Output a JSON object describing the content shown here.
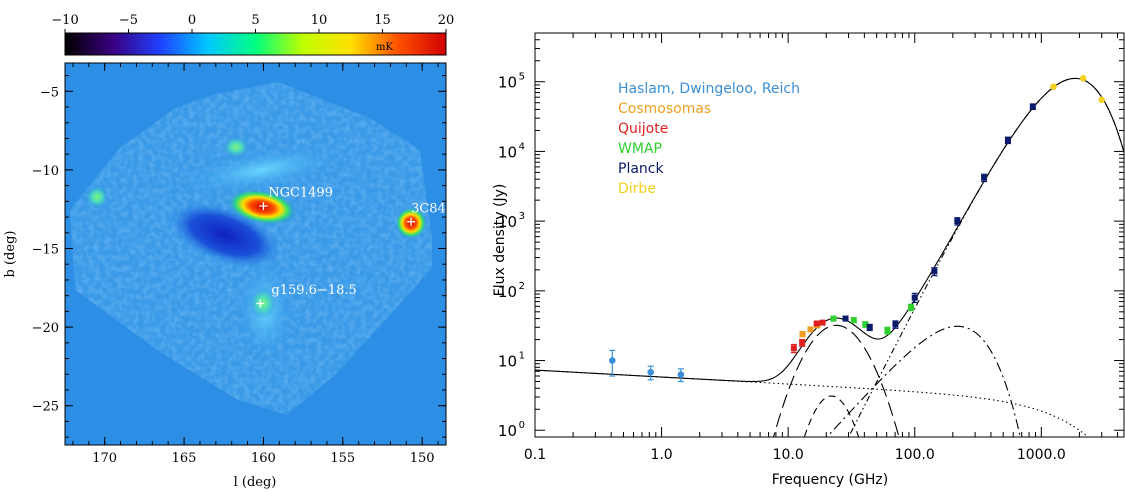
{
  "chart_data": [
    {
      "type": "heatmap",
      "colorbar": {
        "ticks": [
          -10,
          -5,
          0,
          5,
          10,
          15,
          20
        ],
        "range": [
          -10,
          20
        ],
        "unit": "mK",
        "colors": [
          "#000000",
          "#3a0080",
          "#2040ff",
          "#00c8ff",
          "#00ff80",
          "#c0ff00",
          "#ffe000",
          "#ff5000",
          "#d00000"
        ]
      },
      "xlabel": "l (deg)",
      "ylabel": "b (deg)",
      "xlim": [
        172.5,
        148.5
      ],
      "ylim": [
        -27.5,
        -3.2
      ],
      "xticks": [
        170,
        165,
        160,
        155,
        150
      ],
      "yticks": [
        -5,
        -10,
        -15,
        -20,
        -25
      ],
      "background_color": "#2d8ee6",
      "sources": [
        {
          "name": "NGC1499",
          "l": 160.0,
          "b": -12.3,
          "label_l": 159.7,
          "label_b": -11.7
        },
        {
          "name": "3C84",
          "l": 150.7,
          "b": -13.3,
          "label_l": 150.7,
          "label_b": -12.7
        },
        {
          "name": "g159.6−18.5",
          "l": 160.2,
          "b": -18.5,
          "label_l": 159.5,
          "label_b": -17.9
        }
      ]
    },
    {
      "type": "scatter",
      "xlabel": "Frequency (GHz)",
      "ylabel": "Flux density (Jy)",
      "xscale": "log",
      "yscale": "log",
      "xlim": [
        0.1,
        4500
      ],
      "ylim": [
        0.8,
        500000
      ],
      "xtick_labels": [
        "0.1",
        "1.0",
        "10.0",
        "100.0",
        "1000.0"
      ],
      "xticks": [
        0.1,
        1,
        10,
        100,
        1000
      ],
      "yticks": [
        1,
        10,
        100,
        1000,
        10000,
        100000
      ],
      "ytick_labels": [
        "10",
        "10",
        "10",
        "10",
        "10",
        "10"
      ],
      "ytick_exponents": [
        "0",
        "1",
        "2",
        "3",
        "4",
        "5"
      ],
      "legend_position": "top-left",
      "series": [
        {
          "name": "Haslam, Dwingeloo, Reich",
          "color": "#3a8fd8",
          "x": [
            0.408,
            0.82,
            1.42
          ],
          "y": [
            10.0,
            6.8,
            6.3
          ],
          "err": [
            4.0,
            1.5,
            1.3
          ]
        },
        {
          "name": "Cosmosomas",
          "color": "#f0a020",
          "x": [
            13.0,
            15.0,
            17.0
          ],
          "y": [
            24.0,
            28.0,
            32.0
          ],
          "err": [
            2.0,
            2.0,
            2.0
          ]
        },
        {
          "name": "Quijote",
          "color": "#e02020",
          "x": [
            11.1,
            12.9,
            16.8,
            18.7
          ],
          "y": [
            15.0,
            18.0,
            34.0,
            35.0
          ],
          "err": [
            2.0,
            2.0,
            2.0,
            2.0
          ]
        },
        {
          "name": "WMAP",
          "color": "#30d030",
          "x": [
            22.8,
            33.0,
            40.7,
            60.8,
            93.5
          ],
          "y": [
            40.0,
            38.0,
            33.0,
            27.0,
            58.0
          ],
          "err": [
            3.0,
            3.0,
            3.0,
            3.0,
            6.0
          ]
        },
        {
          "name": "Planck",
          "color": "#0a1a6a",
          "x": [
            28.4,
            44.1,
            70.4,
            100,
            143,
            217,
            353,
            545,
            857
          ],
          "y": [
            40.0,
            30.0,
            33.0,
            80.0,
            190.0,
            1000.0,
            4200.0,
            14500.0,
            44000.0
          ],
          "err": [
            3.0,
            3.0,
            4.0,
            12.0,
            25.0,
            120.0,
            500.0,
            1500.0,
            4000.0
          ]
        },
        {
          "name": "Dirbe",
          "color": "#f5d020",
          "x": [
            1249,
            2141,
            2997
          ],
          "y": [
            85000.0,
            112000.0,
            55000.0
          ],
          "err": [
            0,
            0,
            0
          ]
        }
      ],
      "model_curves": [
        {
          "name": "total",
          "style": "solid"
        },
        {
          "name": "free-free",
          "style": "dotted"
        },
        {
          "name": "ame-1",
          "style": "long-dash"
        },
        {
          "name": "ame-2",
          "style": "dash"
        },
        {
          "name": "cmb",
          "style": "dash-dot"
        },
        {
          "name": "dust",
          "style": "dash-dot-dot"
        }
      ]
    }
  ]
}
